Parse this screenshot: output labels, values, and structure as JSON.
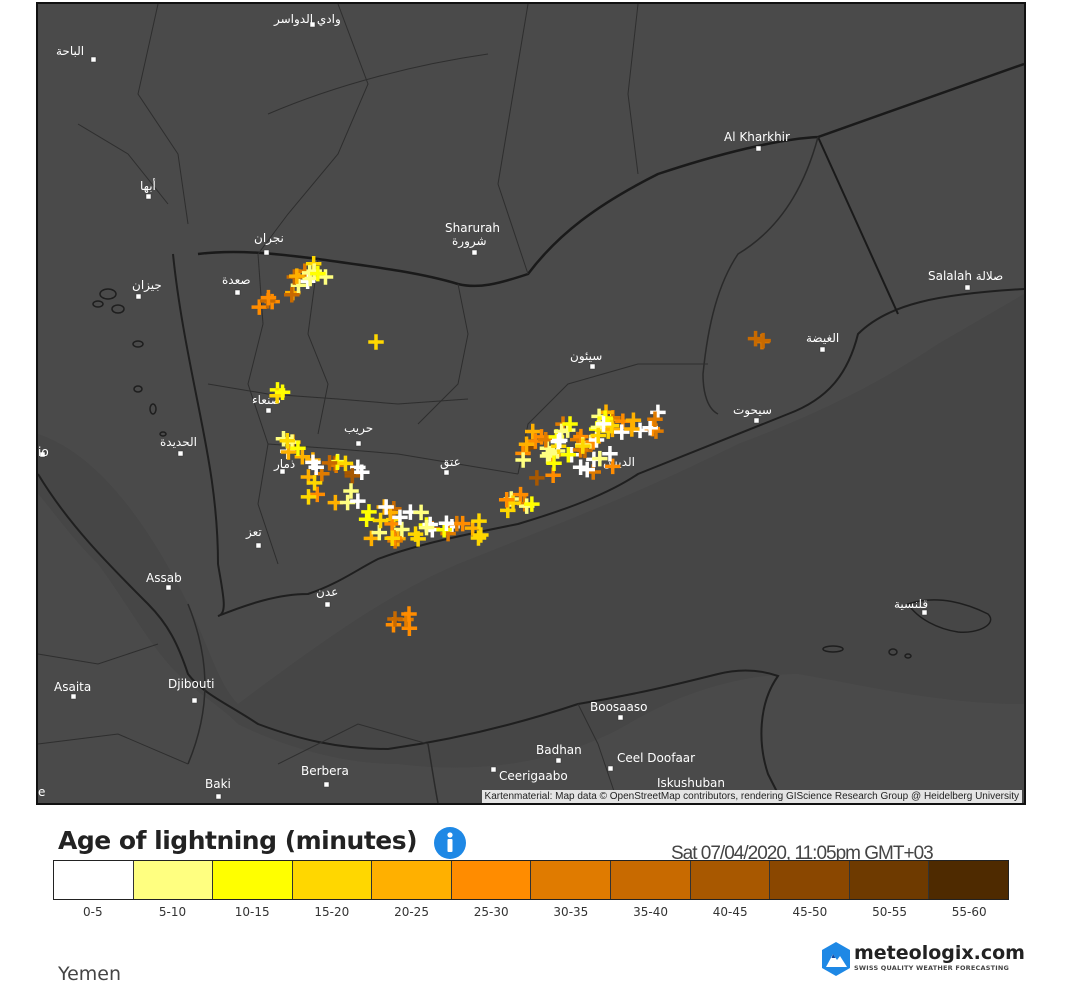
{
  "map": {
    "attribution": "Kartenmaterial: Map data © OpenStreetMap contributors, rendering GIScience Research Group @ Heidelberg University",
    "places": [
      {
        "label": "وادي الدواسر"
      },
      {
        "label": "الباحة"
      },
      {
        "label": "Al Kharkhir"
      },
      {
        "label": "أبها"
      },
      {
        "label": "Sharurah"
      },
      {
        "label": "شرورة"
      },
      {
        "label": "نجران"
      },
      {
        "label": "صعدة"
      },
      {
        "label": "جيزان"
      },
      {
        "label": "Salalah صلالة"
      },
      {
        "label": "الغيضة"
      },
      {
        "label": "سيئون"
      },
      {
        "label": "سيحوت"
      },
      {
        "label": "صنعاء"
      },
      {
        "label": "حريب"
      },
      {
        "label": "الحديدة"
      },
      {
        "label": "ذمار"
      },
      {
        "label": "عتق"
      },
      {
        "label": "الديس"
      },
      {
        "label": "io"
      },
      {
        "label": "تعز"
      },
      {
        "label": "Assab"
      },
      {
        "label": "عدن"
      },
      {
        "label": "قلنسية"
      },
      {
        "label": "Djibouti"
      },
      {
        "label": "Asaita"
      },
      {
        "label": "Boosaaso"
      },
      {
        "label": "Badhan"
      },
      {
        "label": "Ceel Doofaar"
      },
      {
        "label": "Ceerigaabo"
      },
      {
        "label": "Iskushuban"
      },
      {
        "label": "Berbera"
      },
      {
        "label": "Baki"
      },
      {
        "label": "e"
      }
    ]
  },
  "legend": {
    "title": "Age of lightning (minutes)",
    "timestamp": "Sat 07/04/2020, 11:05pm GMT+03",
    "info_icon": "info-icon",
    "bins": [
      {
        "label": "0-5",
        "color": "#ffffff"
      },
      {
        "label": "5-10",
        "color": "#ffff80"
      },
      {
        "label": "10-15",
        "color": "#ffff00"
      },
      {
        "label": "15-20",
        "color": "#ffd700"
      },
      {
        "label": "20-25",
        "color": "#ffb000"
      },
      {
        "label": "25-30",
        "color": "#ff8c00"
      },
      {
        "label": "30-35",
        "color": "#e07b00"
      },
      {
        "label": "35-40",
        "color": "#c86a00"
      },
      {
        "label": "40-45",
        "color": "#a85800"
      },
      {
        "label": "45-50",
        "color": "#8a4700"
      },
      {
        "label": "50-55",
        "color": "#6e3a00"
      },
      {
        "label": "55-60",
        "color": "#4e2a00"
      }
    ]
  },
  "region": "Yemen",
  "brand": {
    "name": "meteologix.com",
    "tagline": "SWISS QUALITY WEATHER FORECASTING",
    "logo_icon": "mountain-logo-icon"
  }
}
